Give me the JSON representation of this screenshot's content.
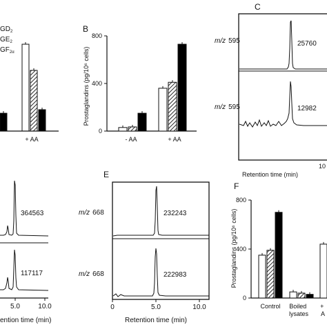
{
  "panels": {
    "A": {
      "legend": [
        {
          "text": "GD",
          "sub": "2"
        },
        {
          "text": "GE",
          "sub": "2"
        },
        {
          "text": "GF",
          "sub": "2α"
        }
      ],
      "xcat": "+ AA",
      "values": {
        "open": 730,
        "hatched": 510,
        "black": 180
      },
      "left_black": 150
    },
    "B": {
      "letter": "B",
      "ylabel": "Prostaglandins (pg/10⁶ cells)",
      "yticks": [
        "0",
        "400",
        "800"
      ],
      "categories": [
        "- AA",
        "+ AA"
      ],
      "series": [
        {
          "values": [
            30,
            360
          ]
        },
        {
          "values": [
            35,
            410
          ]
        },
        {
          "values": [
            150,
            730
          ]
        }
      ],
      "ylim": [
        0,
        800
      ]
    },
    "C": {
      "letter": "C",
      "traces": [
        {
          "mz_label": "m/z",
          "mz": "595",
          "area": "25760"
        },
        {
          "mz_label": "m/z",
          "mz": "595",
          "area": "12982"
        }
      ],
      "xlabel": "Retention time (min)",
      "xtick_partial": "10"
    },
    "D": {
      "areas": [
        "364563",
        "117117"
      ],
      "xticks": [
        "5.0",
        "10.0"
      ],
      "xlabel": "ention time (min)"
    },
    "E": {
      "letter": "E",
      "traces": [
        {
          "mz_label": "m/z",
          "mz": "668",
          "area": "232243"
        },
        {
          "mz_label": "m/z",
          "mz": "668",
          "area": "222983"
        }
      ],
      "xticks": [
        "0",
        "5.0",
        "10.0"
      ],
      "xlabel": "Retention time (min)"
    },
    "F": {
      "letter": "F",
      "ylabel": "Prostaglandins (pg/10⁶ cells)",
      "yticks": [
        "0",
        "400",
        "800"
      ],
      "categories": [
        "Control",
        "Boiled lysates",
        "+ A"
      ],
      "series": [
        {
          "values": [
            350,
            50,
            440
          ]
        },
        {
          "values": [
            390,
            40
          ]
        },
        {
          "values": [
            700,
            30
          ]
        }
      ],
      "ylim": [
        0,
        800
      ]
    }
  },
  "colors": {
    "ink": "#111111",
    "open": "#ffffff",
    "black": "#000000"
  }
}
